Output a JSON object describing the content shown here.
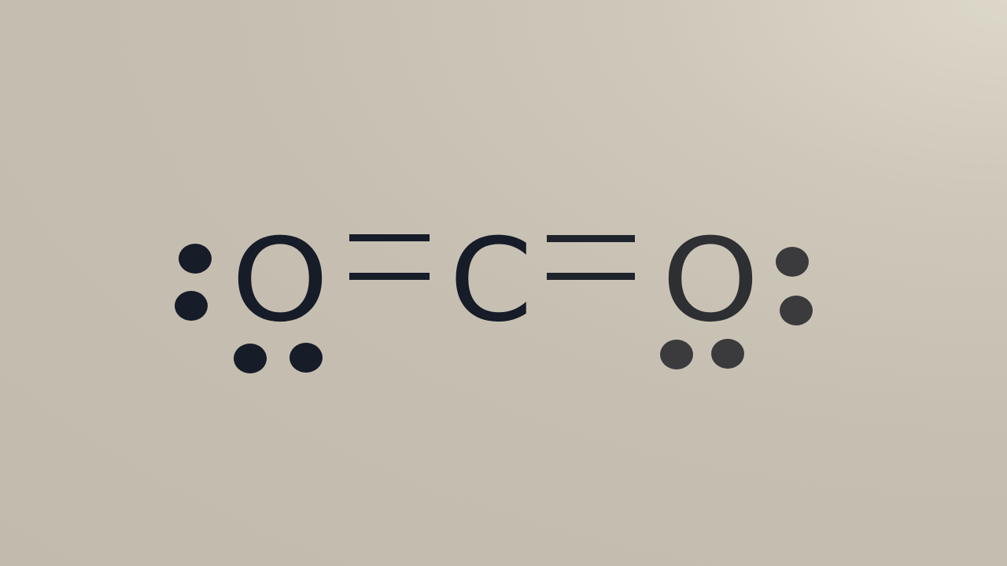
{
  "molecule": {
    "atoms": [
      {
        "symbol": "O",
        "lone_pairs": 2
      },
      {
        "symbol": "C",
        "lone_pairs": 0
      },
      {
        "symbol": "O",
        "lone_pairs": 2
      }
    ],
    "bonds": [
      {
        "from": 0,
        "to": 1,
        "order": 2
      },
      {
        "from": 1,
        "to": 2,
        "order": 2
      }
    ]
  },
  "colors": {
    "left_ink": "#161c28",
    "right_ink": "#2e2f33",
    "right_dots": "#3b3b3e",
    "background": "#c4bdaf"
  }
}
